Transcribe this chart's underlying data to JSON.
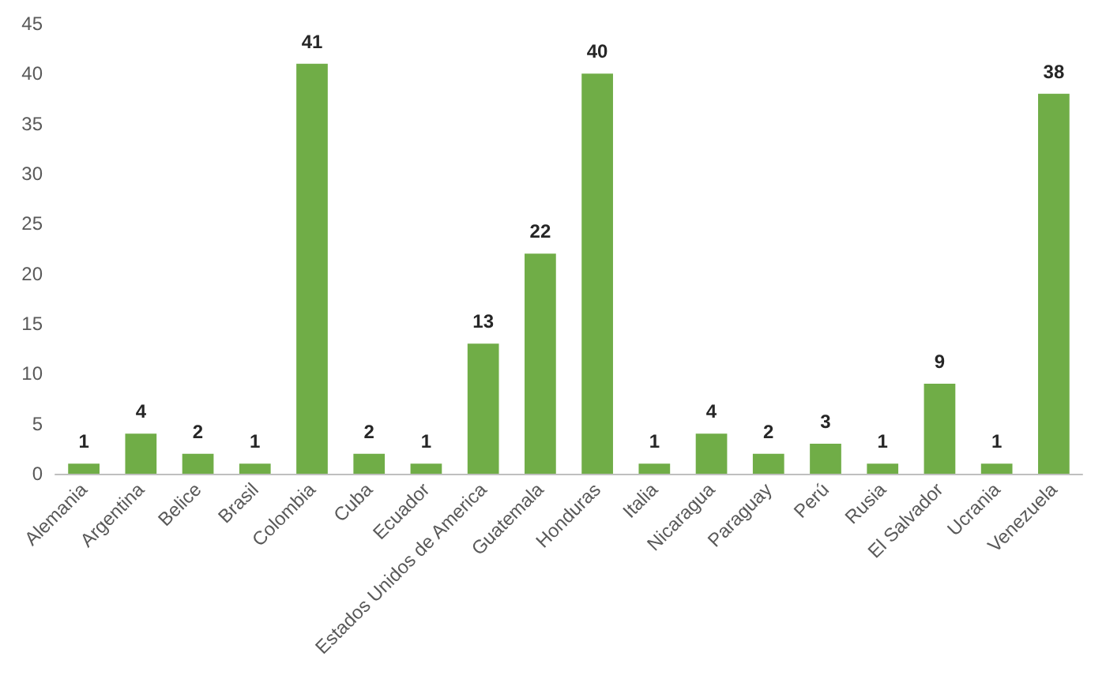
{
  "chart_data": {
    "type": "bar",
    "categories": [
      "Alemania",
      "Argentina",
      "Belice",
      "Brasil",
      "Colombia",
      "Cuba",
      "Ecuador",
      "Estados Unidos de America",
      "Guatemala",
      "Honduras",
      "Italia",
      "Nicaragua",
      "Paraguay",
      "Perú",
      "Rusia",
      "El Salvador",
      "Ucrania",
      "Venezuela"
    ],
    "values": [
      1,
      4,
      2,
      1,
      41,
      2,
      1,
      13,
      22,
      40,
      1,
      4,
      2,
      3,
      1,
      9,
      1,
      38
    ],
    "color": "#70ad47",
    "ylim": [
      0,
      45
    ],
    "yticks": [
      0,
      5,
      10,
      15,
      20,
      25,
      30,
      35,
      40,
      45
    ],
    "data_labels": true,
    "grid": false
  }
}
